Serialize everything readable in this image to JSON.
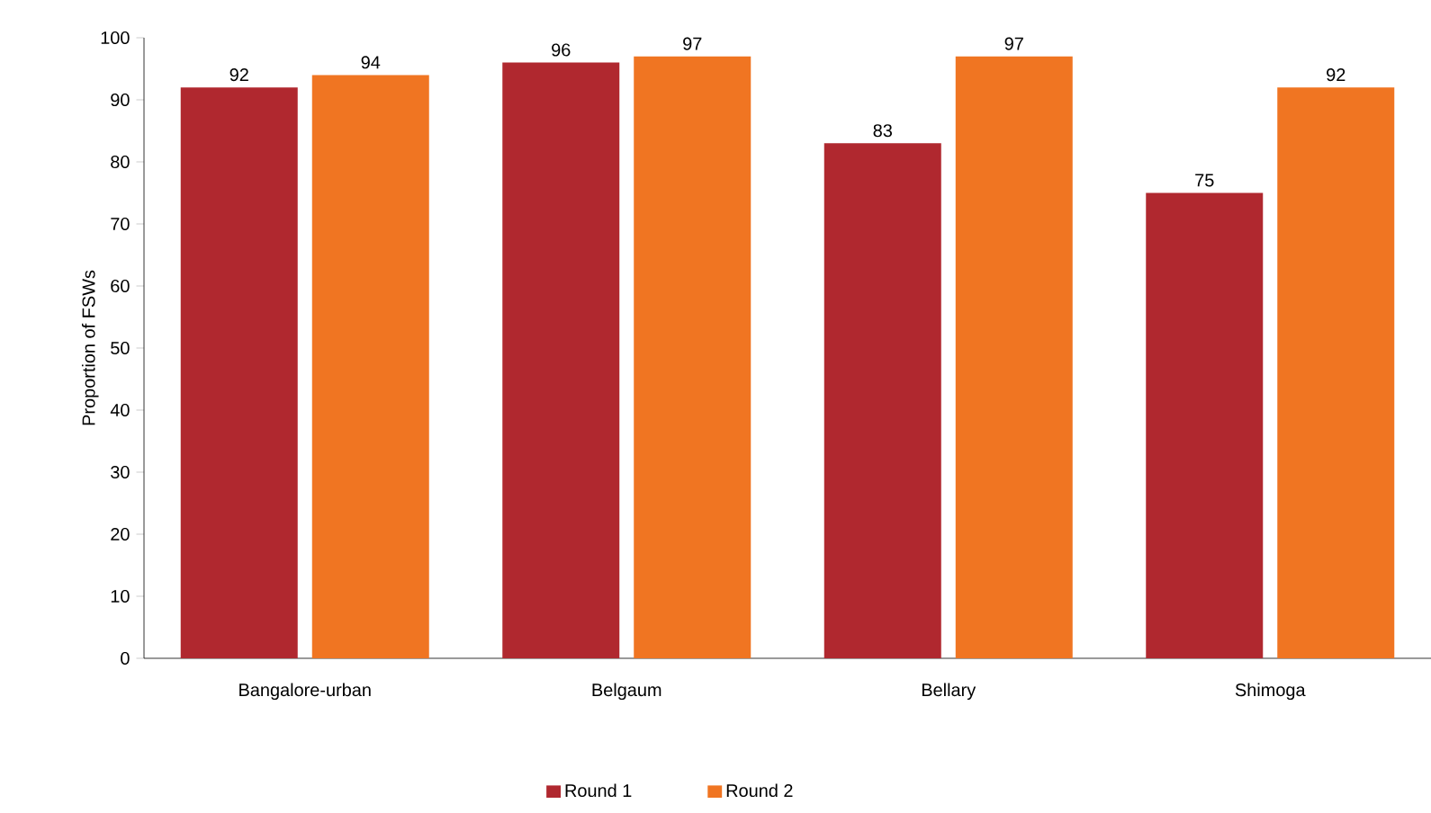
{
  "chart_data": {
    "type": "bar",
    "ylabel": "Proportion of FSWs",
    "categories": [
      "Bangalore-urban",
      "Belgaum",
      "Bellary",
      "Shimoga"
    ],
    "series": [
      {
        "name": "Round 1",
        "color": "#b0282f",
        "values": [
          92,
          96,
          83,
          75
        ]
      },
      {
        "name": "Round 2",
        "color": "#f07522",
        "values": [
          94,
          97,
          97,
          92
        ]
      }
    ],
    "ylim": [
      0,
      100
    ],
    "yticks": [
      0,
      10,
      20,
      30,
      40,
      50,
      60,
      70,
      80,
      90,
      100
    ],
    "data_labels": true,
    "grid": false,
    "legend": "bottom"
  }
}
